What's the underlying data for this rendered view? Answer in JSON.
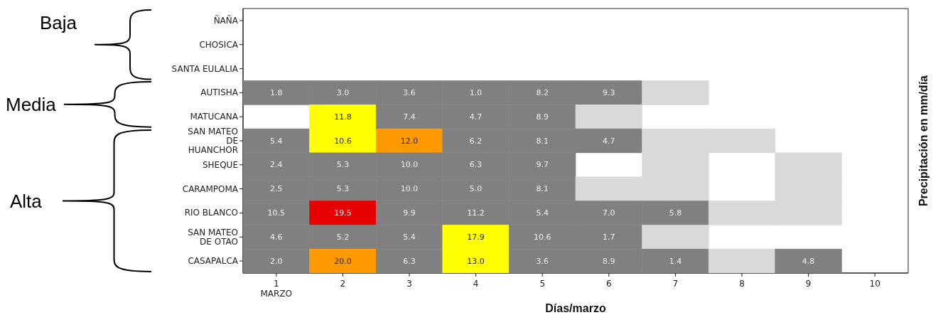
{
  "chart_data": {
    "type": "heatmap",
    "xlabel": "Días/marzo",
    "y2label": "Precipitación en mm/día",
    "annotations": [
      "Baja",
      "Media",
      "Alta"
    ],
    "categories": [
      "1\nMARZO",
      "2",
      "3",
      "4",
      "5",
      "6",
      "7",
      "8",
      "9",
      "10"
    ],
    "y_categories": [
      "ÑAÑA",
      "CHOSICA",
      "SANTA EULALIA",
      "AUTISHA",
      "MATUCANA",
      "SAN MATEO\nDE\nHUANCHOR",
      "SHEQUE",
      "CARAMPOMA",
      "RIO BLANCO",
      "SAN MATEO\nDE OTAO",
      "CASAPALCA"
    ],
    "cells": [
      [
        null,
        null,
        null,
        null,
        null,
        null,
        null,
        null,
        null,
        null
      ],
      [
        null,
        null,
        null,
        null,
        null,
        null,
        null,
        null,
        null,
        null
      ],
      [
        null,
        null,
        null,
        null,
        null,
        null,
        null,
        null,
        null,
        null
      ],
      [
        1.8,
        3.0,
        3.6,
        1.0,
        8.2,
        9.3,
        null,
        null,
        null,
        null
      ],
      [
        null,
        11.8,
        7.4,
        4.7,
        8.9,
        null,
        null,
        null,
        null,
        null
      ],
      [
        5.4,
        10.6,
        12.0,
        6.2,
        8.1,
        4.7,
        null,
        null,
        null,
        null
      ],
      [
        2.4,
        5.3,
        10.0,
        6.3,
        9.7,
        null,
        null,
        null,
        null,
        null
      ],
      [
        2.5,
        5.3,
        10.0,
        5.0,
        8.1,
        null,
        null,
        null,
        null,
        null
      ],
      [
        10.5,
        19.5,
        9.9,
        11.2,
        5.4,
        7.0,
        5.8,
        null,
        null,
        null
      ],
      [
        4.6,
        5.2,
        5.4,
        17.9,
        10.6,
        1.7,
        null,
        null,
        null,
        null
      ],
      [
        2.0,
        20.0,
        6.3,
        13.0,
        3.6,
        8.9,
        1.4,
        null,
        4.8,
        null
      ]
    ],
    "cell_labels": [
      [
        null,
        null,
        null,
        null,
        null,
        null,
        null,
        null,
        null,
        null
      ],
      [
        null,
        null,
        null,
        null,
        null,
        null,
        null,
        null,
        null,
        null
      ],
      [
        null,
        null,
        null,
        null,
        null,
        null,
        null,
        null,
        null,
        null
      ],
      [
        "1.8",
        "3.0",
        "3.6",
        "1.0",
        "8.2",
        "9.3",
        null,
        null,
        null,
        null
      ],
      [
        null,
        "11.8",
        "7.4",
        "4.7",
        "8.9",
        null,
        null,
        null,
        null,
        null
      ],
      [
        "5.4",
        "10.6",
        "12.0",
        "6.2",
        "8.1",
        "4.7",
        null,
        null,
        null,
        null
      ],
      [
        "2.4",
        "5.3",
        "10.0",
        "6.3",
        "9.7",
        null,
        null,
        null,
        null,
        null
      ],
      [
        "2.5",
        "5.3",
        "10.0",
        "5.0",
        "8.1",
        null,
        null,
        null,
        null,
        null
      ],
      [
        "10.5",
        "19.5",
        "9.9",
        "11.2",
        "5.4",
        "7.0",
        "5.8",
        null,
        null,
        null
      ],
      [
        "4.6",
        "5.2",
        "5.4",
        "17.9",
        "10.6",
        "1.7",
        null,
        null,
        null,
        null
      ],
      [
        "2.0",
        "20.0",
        "6.3",
        "13.0",
        "3.6",
        "8.9",
        "1.4",
        null,
        "4.8",
        null
      ]
    ],
    "colors": [
      [
        null,
        null,
        null,
        null,
        null,
        null,
        null,
        null,
        null,
        null
      ],
      [
        null,
        null,
        null,
        null,
        null,
        null,
        null,
        null,
        null,
        null
      ],
      [
        null,
        null,
        null,
        null,
        null,
        null,
        null,
        null,
        null,
        null
      ],
      [
        "#808080",
        "#808080",
        "#808080",
        "#808080",
        "#808080",
        "#808080",
        "#d9d9d9",
        null,
        null,
        null
      ],
      [
        null,
        "#ffff00",
        "#808080",
        "#808080",
        "#808080",
        "#d9d9d9",
        null,
        null,
        null,
        null
      ],
      [
        "#808080",
        "#ffff00",
        "#ff9900",
        "#808080",
        "#808080",
        "#808080",
        "#d9d9d9",
        "#d9d9d9",
        null,
        null
      ],
      [
        "#808080",
        "#808080",
        "#808080",
        "#808080",
        "#808080",
        null,
        "#d9d9d9",
        null,
        "#d9d9d9",
        null
      ],
      [
        "#808080",
        "#808080",
        "#808080",
        "#808080",
        "#808080",
        "#d9d9d9",
        "#d9d9d9",
        null,
        "#d9d9d9",
        null
      ],
      [
        "#808080",
        "#e60000",
        "#808080",
        "#808080",
        "#808080",
        "#808080",
        "#808080",
        "#d9d9d9",
        "#d9d9d9",
        null
      ],
      [
        "#808080",
        "#808080",
        "#808080",
        "#ffff00",
        "#808080",
        "#808080",
        "#d9d9d9",
        null,
        null,
        null
      ],
      [
        "#808080",
        "#ff9900",
        "#808080",
        "#ffff00",
        "#808080",
        "#808080",
        "#808080",
        "#d9d9d9",
        "#808080",
        null
      ]
    ]
  }
}
